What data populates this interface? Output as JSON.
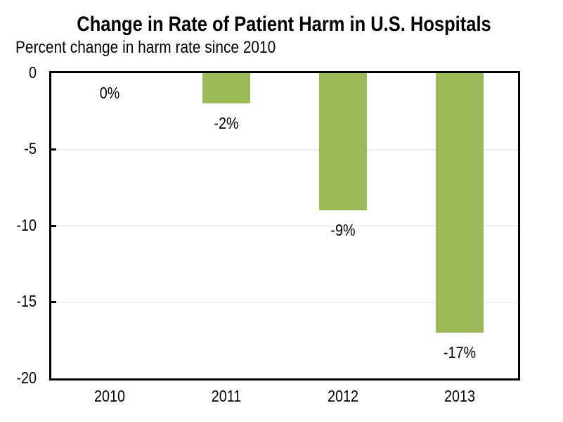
{
  "chart_data": {
    "type": "bar",
    "title": "Change in Rate of Patient Harm in U.S. Hospitals",
    "subtitle": "Percent change in harm rate since 2010",
    "categories": [
      "2010",
      "2011",
      "2012",
      "2013"
    ],
    "values": [
      0,
      -2,
      -9,
      -17
    ],
    "data_labels": [
      "0%",
      "-2%",
      "-9%",
      "-17%"
    ],
    "xlabel": "",
    "ylabel": "Percent change in harm rate since 2010",
    "ylim": [
      -20,
      0
    ],
    "yticks": [
      0,
      -5,
      -10,
      -15,
      -20
    ],
    "ytick_labels": [
      "0",
      "-5",
      "-10",
      "-15",
      "-20"
    ],
    "gridline_values": [
      -5,
      -10,
      -15
    ],
    "grid": "horizontal only, faint",
    "legend_position": "none",
    "colors": {
      "bar": "#9BBB59",
      "gridline": "#EFEFEF",
      "axis_frame": "#000000",
      "text": "#000000",
      "background": "#FFFFFF"
    }
  }
}
